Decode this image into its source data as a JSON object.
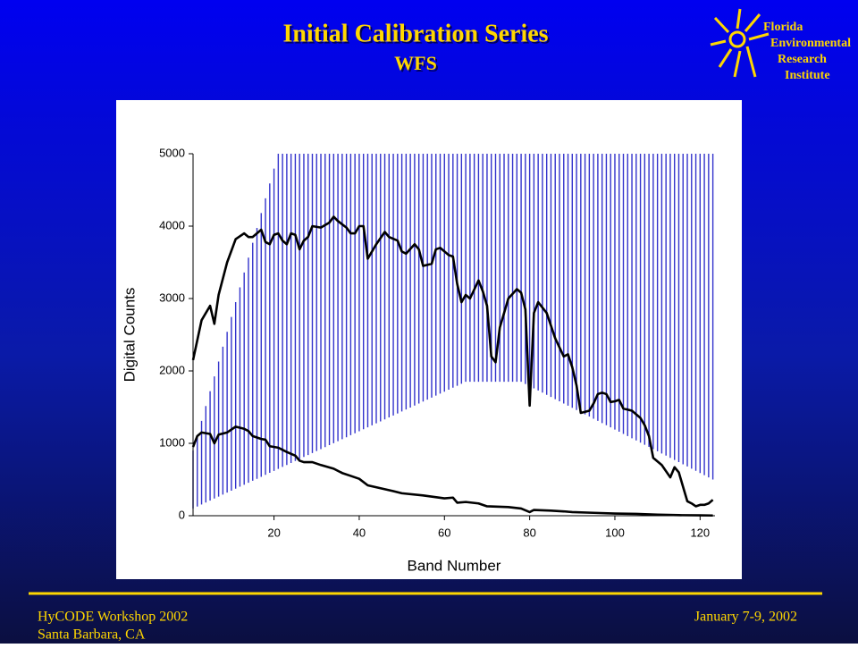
{
  "header": {
    "title": "Initial Calibration Series",
    "subtitle": "WFS"
  },
  "logo": {
    "lines": [
      "Florida",
      "Environmental",
      "Research",
      "Institute"
    ]
  },
  "footer": {
    "left": [
      "HyCODE Workshop 2002",
      "Santa Barbara, CA"
    ],
    "right": "January 7-9, 2002"
  },
  "chart_data": {
    "type": "range-line",
    "xlabel": "Band Number",
    "ylabel": "Digital Counts",
    "xlim": [
      1,
      123.5
    ],
    "xticks": [
      20,
      40,
      60,
      80,
      100,
      120
    ],
    "ylim": [
      0,
      5000
    ],
    "yticks": [
      0,
      1000,
      2000,
      3000,
      4000,
      5000
    ],
    "ranges": {
      "color": "#3333cc",
      "x": [
        1,
        2,
        3,
        4,
        5,
        6,
        7,
        8,
        9,
        10,
        11,
        12,
        13,
        14,
        15,
        16,
        17,
        18,
        19,
        20,
        21,
        22,
        23,
        24,
        25,
        26,
        27,
        28,
        29,
        30,
        31,
        32,
        33,
        34,
        35,
        36,
        37,
        38,
        39,
        40,
        41,
        42,
        43,
        44,
        45,
        46,
        47,
        48,
        49,
        50,
        51,
        52,
        53,
        54,
        55,
        56,
        57,
        58,
        59,
        60,
        61,
        62,
        63,
        64,
        65,
        66,
        67,
        68,
        69,
        70,
        71,
        72,
        73,
        74,
        75,
        76,
        77,
        78,
        79,
        80,
        81,
        82,
        83,
        84,
        85,
        86,
        87,
        88,
        89,
        90,
        91,
        92,
        93,
        94,
        95,
        96,
        97,
        98,
        99,
        100,
        101,
        102,
        103,
        104,
        105,
        106,
        107,
        108,
        109,
        110,
        111,
        112,
        113,
        114,
        115,
        116,
        117,
        118,
        119,
        120,
        121,
        122,
        123
      ],
      "low": [
        100,
        127,
        155,
        182,
        209,
        237,
        264,
        291,
        319,
        346,
        373,
        401,
        428,
        455,
        483,
        510,
        537,
        565,
        592,
        619,
        647,
        674,
        701,
        729,
        756,
        784,
        811,
        838,
        866,
        893,
        920,
        948,
        975,
        1002,
        1030,
        1057,
        1084,
        1112,
        1139,
        1166,
        1194,
        1221,
        1248,
        1276,
        1303,
        1330,
        1358,
        1385,
        1412,
        1440,
        1467,
        1494,
        1522,
        1549,
        1577,
        1604,
        1631,
        1659,
        1686,
        1713,
        1741,
        1768,
        1795,
        1823,
        1850,
        1850,
        1850,
        1850,
        1850,
        1850,
        1850,
        1850,
        1850,
        1850,
        1850,
        1850,
        1850,
        1850,
        1820,
        1790,
        1760,
        1730,
        1700,
        1670,
        1640,
        1610,
        1580,
        1550,
        1520,
        1490,
        1460,
        1430,
        1400,
        1370,
        1340,
        1310,
        1280,
        1250,
        1220,
        1190,
        1160,
        1130,
        1100,
        1070,
        1040,
        1010,
        980,
        950,
        920,
        890,
        860,
        830,
        800,
        770,
        740,
        710,
        680,
        650,
        620,
        590,
        560,
        530,
        500
      ],
      "high": [
        900,
        1105,
        1310,
        1515,
        1720,
        1925,
        2130,
        2335,
        2540,
        2745,
        2950,
        3155,
        3360,
        3565,
        3770,
        3975,
        4180,
        4385,
        4590,
        4795,
        5000,
        5000,
        5000,
        5000,
        5000,
        5000,
        5000,
        5000,
        5000,
        5000,
        5000,
        5000,
        5000,
        5000,
        5000,
        5000,
        5000,
        5000,
        5000,
        5000,
        5000,
        5000,
        5000,
        5000,
        5000,
        5000,
        5000,
        5000,
        5000,
        5000,
        5000,
        5000,
        5000,
        5000,
        5000,
        5000,
        5000,
        5000,
        5000,
        5000,
        5000,
        5000,
        5000,
        5000,
        5000,
        5000,
        5000,
        5000,
        5000,
        5000,
        5000,
        5000,
        5000,
        5000,
        5000,
        5000,
        5000,
        5000,
        5000,
        5000,
        5000,
        5000,
        5000,
        5000,
        5000,
        5000,
        5000,
        5000,
        5000,
        5000,
        5000,
        5000,
        5000,
        5000,
        5000,
        5000,
        5000,
        5000,
        5000,
        5000,
        5000,
        5000,
        5000,
        5000,
        5000,
        5000,
        5000,
        5000,
        5000,
        5000,
        5000,
        5000,
        5000,
        5000,
        5000,
        5000,
        5000,
        5000,
        5000,
        5000,
        5000,
        5000,
        5000
      ]
    },
    "lines": [
      {
        "color": "#000000",
        "x": [
          1,
          3,
          5,
          6,
          7,
          9,
          11,
          13,
          14,
          15,
          17,
          18,
          19,
          20,
          21,
          22,
          23,
          24,
          25,
          26,
          27,
          28,
          29,
          31,
          33,
          34,
          35,
          37,
          38,
          39,
          40,
          41,
          42,
          44,
          46,
          47,
          49,
          50,
          51,
          53,
          54,
          55,
          57,
          58,
          59,
          61,
          62,
          63,
          64,
          65,
          66,
          68,
          69,
          70,
          71,
          72,
          73,
          75,
          77,
          78,
          79,
          80,
          81,
          82,
          84,
          86,
          88,
          89,
          90,
          91,
          92,
          94,
          95,
          96,
          97,
          98,
          99,
          100,
          101,
          102,
          104,
          106,
          107,
          108,
          109,
          110,
          111,
          113,
          114,
          115,
          117,
          118,
          119,
          120,
          121,
          122,
          123
        ],
        "values": [
          2150,
          2700,
          2900,
          2650,
          3050,
          3500,
          3820,
          3900,
          3850,
          3850,
          3950,
          3780,
          3750,
          3880,
          3900,
          3800,
          3750,
          3900,
          3880,
          3680,
          3800,
          3850,
          4000,
          3980,
          4050,
          4130,
          4070,
          3980,
          3900,
          3900,
          4000,
          4000,
          3550,
          3750,
          3920,
          3850,
          3800,
          3650,
          3620,
          3750,
          3680,
          3450,
          3480,
          3680,
          3700,
          3600,
          3580,
          3200,
          2950,
          3050,
          3000,
          3250,
          3100,
          2900,
          2200,
          2120,
          2600,
          3000,
          3130,
          3080,
          2850,
          1520,
          2800,
          2950,
          2800,
          2450,
          2200,
          2230,
          2050,
          1800,
          1420,
          1450,
          1550,
          1680,
          1700,
          1680,
          1570,
          1580,
          1600,
          1480,
          1450,
          1350,
          1250,
          1100,
          800,
          750,
          700,
          530,
          670,
          600,
          200,
          170,
          130,
          150,
          150,
          170,
          220
        ]
      },
      {
        "color": "#000000",
        "x": [
          1,
          2,
          3,
          5,
          6,
          7,
          9,
          11,
          13,
          14,
          15,
          17,
          18,
          19,
          21,
          23,
          25,
          26,
          27,
          29,
          31,
          34,
          36,
          38,
          40,
          42,
          45,
          48,
          50,
          55,
          60,
          62,
          63,
          65,
          68,
          70,
          75,
          78,
          80,
          81,
          85,
          88,
          90,
          95,
          100,
          105,
          110,
          115,
          120,
          123
        ],
        "values": [
          950,
          1100,
          1150,
          1130,
          1000,
          1120,
          1150,
          1230,
          1200,
          1170,
          1100,
          1060,
          1050,
          960,
          940,
          880,
          830,
          760,
          740,
          740,
          700,
          650,
          590,
          550,
          510,
          420,
          380,
          340,
          310,
          280,
          240,
          250,
          180,
          190,
          170,
          130,
          120,
          100,
          50,
          80,
          70,
          60,
          50,
          40,
          30,
          25,
          15,
          8,
          5,
          3
        ]
      }
    ]
  }
}
